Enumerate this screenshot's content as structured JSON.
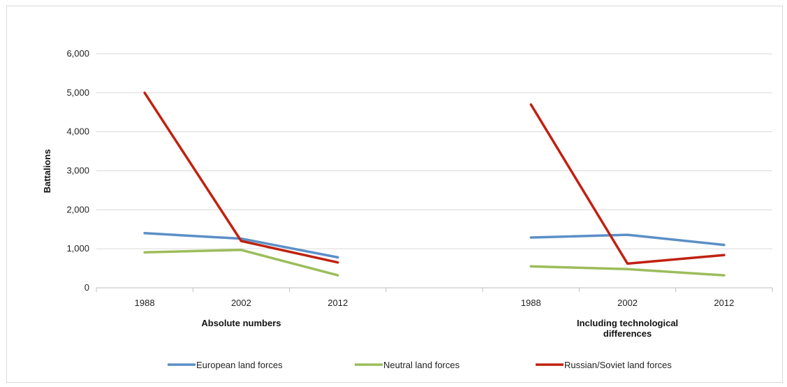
{
  "chart_data": {
    "type": "line",
    "title": "",
    "ylabel": "Battalions",
    "ylim": [
      0,
      6000
    ],
    "yticks": [
      "0",
      "1,000",
      "2,000",
      "3,000",
      "4,000",
      "5,000",
      "6,000"
    ],
    "grid": true,
    "legend_position": "bottom",
    "groups": [
      {
        "label": "Absolute numbers",
        "categories": [
          "1988",
          "2002",
          "2012"
        ]
      },
      {
        "label": "Including technological differences",
        "label_lines": [
          "Including technological",
          "differences"
        ],
        "categories": [
          "1988",
          "2002",
          "2012"
        ]
      }
    ],
    "series": [
      {
        "name": "European land forces",
        "color": "#5b8fc7",
        "groups": [
          [
            1400,
            1260,
            780
          ],
          [
            1290,
            1360,
            1100
          ]
        ]
      },
      {
        "name": "Neutral land forces",
        "color": "#9bbd5a",
        "groups": [
          [
            910,
            970,
            320
          ],
          [
            550,
            480,
            320
          ]
        ]
      },
      {
        "name": "Russian/Soviet land forces",
        "color": "#c0210f",
        "groups": [
          [
            5000,
            1200,
            650
          ],
          [
            4700,
            620,
            840
          ]
        ]
      }
    ]
  }
}
